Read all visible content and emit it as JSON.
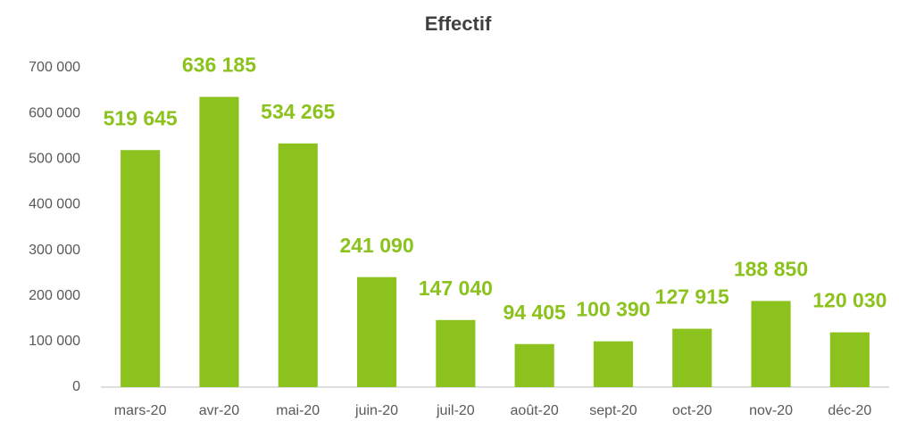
{
  "chart_data": {
    "type": "bar",
    "title": "Effectif",
    "categories": [
      "mars-20",
      "avr-20",
      "mai-20",
      "juin-20",
      "juil-20",
      "août-20",
      "sept-20",
      "oct-20",
      "nov-20",
      "déc-20"
    ],
    "values": [
      519645,
      636185,
      534265,
      241090,
      147040,
      94405,
      100390,
      127915,
      188850,
      120030
    ],
    "value_labels": [
      "519 645",
      "636 185",
      "534 265",
      "241 090",
      "147 040",
      "94 405",
      "100 390",
      "127 915",
      "188 850",
      "120 030"
    ],
    "color": "#8cc21e",
    "ylim": [
      0,
      700000
    ],
    "yticks": [
      0,
      {
        "value": 100000,
        "label": "100 000"
      },
      {
        "value": 200000,
        "label": "200 000"
      },
      {
        "value": 300000,
        "label": "300 000"
      },
      {
        "value": 400000,
        "label": "400 000"
      },
      {
        "value": 500000,
        "label": "500 000"
      },
      {
        "value": 600000,
        "label": "600 000"
      },
      {
        "value": 700000,
        "label": "700 000"
      }
    ],
    "grid": false
  }
}
